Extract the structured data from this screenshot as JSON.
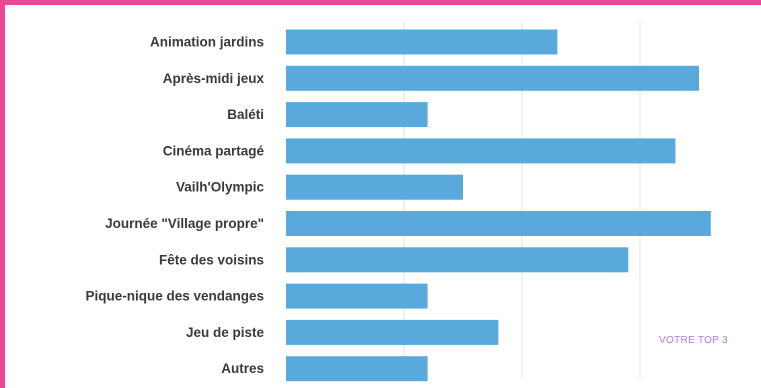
{
  "chart_data": {
    "type": "bar",
    "orientation": "horizontal",
    "title": "",
    "xlabel": "",
    "ylabel": "",
    "categories": [
      "Animation jardins",
      "Après-midi jeux",
      "Baléti",
      "Cinéma partagé",
      "Vailh'Olympic",
      "Journée \"Village propre\"",
      "Fête des voisins",
      "Pique-nique des vendanges",
      "Jeu de piste",
      "Autres"
    ],
    "values": [
      23,
      35,
      12,
      33,
      15,
      36,
      29,
      12,
      18,
      12
    ],
    "xlim": [
      0,
      40
    ],
    "grid": true,
    "bar_color": "#59a9dc",
    "annotation": "VOTRE TOP 3"
  },
  "colors": {
    "frame": "#e84a98",
    "bar": "#59a9dc",
    "grid": "#e2e2e2",
    "annotation": "#b27ad8"
  }
}
